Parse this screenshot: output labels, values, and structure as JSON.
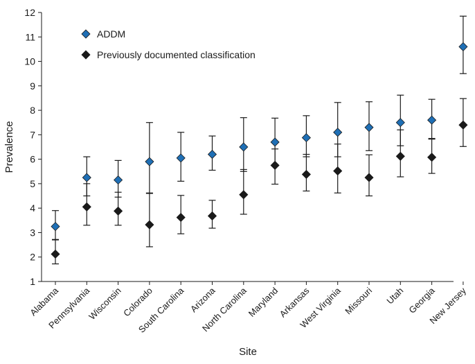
{
  "chart_data": {
    "type": "scatter",
    "title": "",
    "xlabel": "Site",
    "ylabel": "Prevalence",
    "ylim": [
      1,
      12
    ],
    "yticks": [
      1,
      2,
      3,
      4,
      5,
      6,
      7,
      8,
      9,
      10,
      11,
      12
    ],
    "grid": false,
    "legend_position": "top-left",
    "categories": [
      "Alabama",
      "Pennsylvania",
      "Wisconsin",
      "Colorado",
      "South Carolina",
      "Arizona",
      "North Carolina",
      "Maryland",
      "Arkansas",
      "West Virginia",
      "Missouri",
      "Utah",
      "Georgia",
      "New Jersey"
    ],
    "series": [
      {
        "name": "ADDM",
        "color": "#1f6fb5",
        "marker": "diamond",
        "values": [
          3.25,
          5.25,
          5.15,
          5.9,
          6.05,
          6.2,
          6.5,
          6.7,
          6.88,
          7.1,
          7.3,
          7.5,
          7.6,
          10.6
        ],
        "lower": [
          2.7,
          4.5,
          4.45,
          4.6,
          5.1,
          5.55,
          5.5,
          5.75,
          6.1,
          6.1,
          6.35,
          6.55,
          6.85,
          9.5
        ],
        "upper": [
          3.9,
          6.1,
          5.95,
          7.5,
          7.1,
          6.95,
          7.7,
          7.68,
          7.78,
          8.32,
          8.35,
          8.62,
          8.45,
          11.85
        ]
      },
      {
        "name": "Previously documented classification",
        "color": "#1a1a1a",
        "marker": "diamond",
        "values": [
          2.12,
          4.05,
          3.88,
          3.32,
          3.62,
          3.68,
          4.55,
          5.75,
          5.38,
          5.52,
          5.25,
          6.12,
          6.08,
          7.4
        ],
        "lower": [
          1.72,
          3.3,
          3.3,
          2.42,
          2.95,
          3.18,
          3.75,
          4.98,
          4.7,
          4.62,
          4.5,
          5.28,
          5.42,
          6.52
        ],
        "upper": [
          2.72,
          5.0,
          4.65,
          4.62,
          4.52,
          4.32,
          5.58,
          6.42,
          6.2,
          6.62,
          6.18,
          7.2,
          6.82,
          8.48
        ]
      }
    ]
  }
}
